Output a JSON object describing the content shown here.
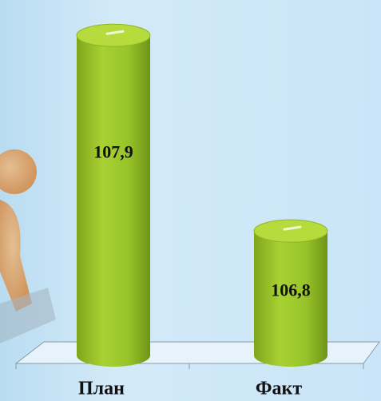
{
  "chart_data": {
    "type": "cylinder-bar",
    "categories": [
      "План",
      "Факт"
    ],
    "values": [
      107.9,
      106.8
    ],
    "value_labels": [
      "107,9",
      "106,8"
    ],
    "color": "#9ac42a",
    "ylim": [
      106.1,
      108.0
    ]
  }
}
